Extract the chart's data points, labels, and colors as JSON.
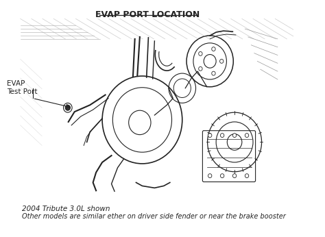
{
  "title": "EVAP PORT LOCATION",
  "label_evap": "EVAP\nTest Port",
  "caption_line1": "2004 Tribute 3.0L shown",
  "caption_line2": "Other models are similar ether on driver side fender or near the brake booster",
  "bg_color": "#ffffff",
  "line_color": "#222222",
  "title_fontsize": 9,
  "label_fontsize": 7.5,
  "caption_fontsize": 7.5,
  "fig_width": 4.74,
  "fig_height": 3.46,
  "dpi": 100
}
